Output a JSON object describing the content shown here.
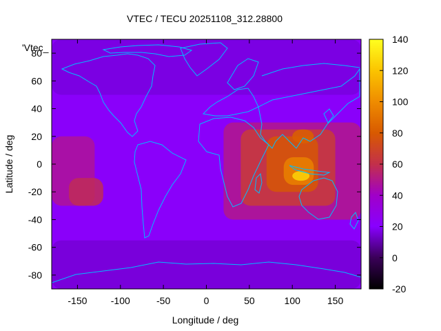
{
  "chart_data": {
    "type": "heatmap",
    "title": "VTEC / TECU 20251108_312.28800",
    "xlabel": "Longitude / deg",
    "ylabel": "Latitude / deg",
    "key_label": "'Vtec_",
    "xlim": [
      -180,
      180
    ],
    "ylim": [
      -90,
      90
    ],
    "x_ticks": [
      -150,
      -100,
      -50,
      0,
      50,
      100,
      150
    ],
    "y_ticks": [
      -80,
      -60,
      -40,
      -20,
      0,
      20,
      40,
      60,
      80
    ],
    "colorbar": {
      "range": [
        -20,
        140
      ],
      "ticks": [
        -20,
        0,
        20,
        40,
        60,
        80,
        100,
        120,
        140
      ],
      "colormap": "gnuplot pm3d (black-purple-red-orange-yellow)"
    },
    "grid": false,
    "coastline_color": "#00bfff",
    "regions": [
      {
        "lon_min": -180,
        "lon_max": 180,
        "lat_min": -90,
        "lat_max": 90,
        "value": 22
      },
      {
        "lon_min": -180,
        "lon_max": 180,
        "lat_min": 50,
        "lat_max": 90,
        "value": 16
      },
      {
        "lon_min": -180,
        "lon_max": 180,
        "lat_min": -90,
        "lat_max": -55,
        "value": 15
      },
      {
        "lon_min": 20,
        "lon_max": 180,
        "lat_min": -40,
        "lat_max": 30,
        "value": 50
      },
      {
        "lon_min": 40,
        "lon_max": 150,
        "lat_min": -30,
        "lat_max": 25,
        "value": 65
      },
      {
        "lon_min": 70,
        "lon_max": 130,
        "lat_min": -20,
        "lat_max": 20,
        "value": 78
      },
      {
        "lon_min": 90,
        "lon_max": 125,
        "lat_min": -15,
        "lat_max": 5,
        "value": 95
      },
      {
        "lon_min": 100,
        "lon_max": 120,
        "lat_min": -12,
        "lat_max": -5,
        "value": 125
      },
      {
        "lon_min": 100,
        "lon_max": 125,
        "lat_min": 15,
        "lat_max": 25,
        "value": 82
      },
      {
        "lon_min": -180,
        "lon_max": -130,
        "lat_min": -30,
        "lat_max": 20,
        "value": 48
      },
      {
        "lon_min": -160,
        "lon_max": -120,
        "lat_min": -30,
        "lat_max": -10,
        "value": 58
      }
    ]
  }
}
